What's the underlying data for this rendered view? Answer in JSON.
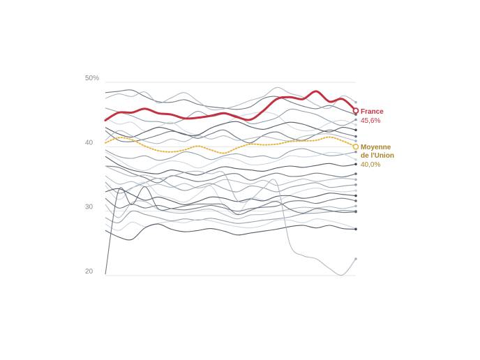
{
  "chart_data": {
    "type": "line",
    "ylim": [
      20,
      50
    ],
    "y_ticks": [
      "20",
      "30",
      "40",
      "50%"
    ],
    "grid": true,
    "highlight": {
      "name": "France",
      "value_label": "45,6%",
      "color": "#c4313e",
      "values": [
        44.1,
        45.3,
        45.3,
        45.9,
        45.2,
        45.0,
        44.4,
        44.5,
        44.8,
        45.2,
        44.6,
        44.2,
        45.6,
        47.4,
        47.7,
        47.4,
        48.6,
        47.0,
        47.4,
        45.6
      ]
    },
    "average": {
      "name": "Moyenne de l'Union",
      "name_lines": [
        "Moyenne",
        "de l'Union"
      ],
      "value_label": "40,0%",
      "color": "#e8b341",
      "values": [
        40.6,
        41.4,
        41.1,
        40.1,
        39.4,
        39.2,
        39.5,
        40.1,
        39.5,
        39.0,
        39.8,
        40.4,
        40.3,
        40.4,
        40.8,
        40.9,
        41.0,
        41.5,
        40.9,
        40.0
      ]
    },
    "others_colors": [
      "#5f6a75",
      "#a8b3bd",
      "#8696a4",
      "#c9d2da",
      "#3f4954"
    ],
    "series": [
      {
        "values": [
          48.4,
          48.6,
          48.8,
          47.8,
          47.0,
          46.9,
          47.3,
          46.6,
          46.2,
          46.0,
          45.8,
          46.2,
          47.5,
          47.8,
          47.0,
          46.3,
          45.9,
          46.4,
          45.7,
          45.0
        ]
      },
      {
        "values": [
          47.5,
          48.2,
          47.8,
          48.5,
          46.8,
          47.6,
          48.4,
          47.1,
          45.8,
          45.9,
          46.4,
          47.2,
          47.8,
          49.2,
          48.3,
          47.7,
          46.5,
          46.0,
          47.9,
          46.9
        ]
      },
      {
        "values": [
          46.0,
          45.4,
          44.8,
          44.0,
          43.9,
          43.6,
          44.3,
          45.5,
          44.7,
          45.1,
          44.8,
          43.6,
          43.9,
          44.5,
          45.8,
          45.5,
          45.0,
          44.0,
          43.3,
          44.2
        ]
      },
      {
        "values": [
          44.5,
          43.5,
          43.8,
          42.4,
          43.1,
          43.8,
          42.5,
          41.9,
          42.9,
          43.5,
          44.6,
          45.1,
          45.4,
          44.9,
          43.2,
          42.5,
          42.7,
          43.7,
          44.1,
          43.4
        ]
      },
      {
        "values": [
          43.0,
          42.0,
          41.5,
          42.3,
          43.0,
          42.6,
          41.9,
          41.8,
          42.9,
          43.6,
          43.9,
          43.1,
          42.7,
          43.3,
          43.8,
          43.5,
          42.8,
          42.3,
          43.0,
          42.6
        ]
      },
      {
        "values": [
          42.5,
          41.0,
          40.8,
          41.2,
          41.8,
          42.4,
          42.0,
          41.3,
          42.0,
          42.6,
          41.4,
          40.6,
          41.8,
          42.3,
          41.4,
          41.0,
          41.9,
          42.6,
          42.1,
          41.6
        ]
      },
      {
        "values": [
          41.0,
          42.5,
          41.7,
          40.9,
          40.5,
          41.2,
          40.8,
          41.7,
          41.2,
          41.7,
          41.0,
          41.3,
          41.6,
          41.2,
          40.9,
          41.6,
          41.9,
          42.0,
          41.5,
          40.9
        ]
      },
      {
        "values": [
          39.5,
          38.5,
          38.2,
          38.6,
          37.9,
          38.3,
          39.2,
          38.8,
          38.0,
          38.6,
          38.9,
          38.4,
          38.6,
          38.2,
          39.3,
          39.7,
          39.1,
          38.6,
          38.8,
          39.2
        ]
      },
      {
        "values": [
          39.2,
          38.0,
          36.8,
          36.3,
          37.2,
          37.8,
          37.5,
          36.7,
          37.4,
          38.3,
          38.0,
          37.2,
          37.3,
          37.8,
          38.6,
          38.4,
          38.6,
          39.1,
          38.9,
          38.0
        ]
      },
      {
        "values": [
          38.5,
          37.2,
          36.4,
          36.0,
          35.8,
          36.4,
          36.0,
          35.6,
          36.3,
          36.9,
          36.6,
          36.4,
          36.2,
          36.7,
          37.0,
          36.8,
          37.1,
          37.4,
          37.0,
          37.3
        ]
      },
      {
        "values": [
          37.0,
          36.8,
          35.9,
          35.2,
          34.4,
          35.5,
          35.1,
          34.6,
          34.9,
          35.6,
          35.8,
          34.8,
          35.4,
          35.9,
          35.4,
          35.5,
          35.9,
          35.6,
          35.3,
          35.8
        ]
      },
      {
        "values": [
          35.5,
          34.2,
          34.6,
          33.8,
          34.2,
          33.7,
          34.3,
          33.6,
          34.1,
          34.9,
          34.6,
          34.2,
          34.8,
          34.0,
          34.5,
          35.0,
          34.6,
          34.9,
          35.1,
          34.9
        ]
      },
      {
        "values": [
          34.5,
          32.8,
          33.6,
          34.4,
          35.1,
          34.0,
          33.2,
          33.8,
          34.3,
          33.5,
          33.0,
          33.9,
          33.6,
          33.0,
          33.7,
          34.1,
          34.4,
          33.7,
          33.9,
          34.1
        ]
      },
      {
        "values": [
          34.0,
          31.8,
          33.5,
          34.5,
          32.6,
          32.0,
          31.4,
          32.6,
          33.9,
          30.8,
          29.5,
          32.0,
          31.7,
          31.6,
          32.5,
          33.2,
          33.6,
          33.2,
          33.0,
          33.2
        ]
      },
      {
        "values": [
          33.0,
          33.5,
          32.6,
          31.7,
          32.2,
          31.6,
          31.0,
          31.5,
          32.2,
          32.0,
          31.5,
          31.9,
          31.6,
          32.3,
          32.4,
          32.0,
          32.3,
          32.8,
          32.6,
          32.4
        ]
      },
      {
        "values": [
          32.0,
          30.5,
          31.1,
          30.5,
          30.9,
          30.4,
          30.2,
          30.5,
          30.9,
          30.5,
          30.0,
          30.4,
          30.6,
          30.8,
          31.5,
          31.6,
          31.2,
          31.7,
          32.0,
          31.6
        ]
      },
      {
        "values": [
          31.0,
          29.0,
          31.3,
          31.5,
          30.3,
          29.8,
          29.7,
          30.1,
          30.3,
          29.5,
          28.8,
          29.4,
          29.5,
          29.9,
          30.3,
          30.6,
          30.5,
          30.7,
          30.4,
          30.8
        ]
      },
      {
        "values": [
          29.0,
          28.2,
          30.0,
          29.5,
          29.0,
          28.5,
          28.8,
          28.6,
          28.9,
          28.5,
          28.1,
          28.3,
          28.6,
          28.8,
          29.1,
          29.6,
          29.7,
          29.9,
          30.1,
          30.0
        ]
      },
      {
        "values": [
          28.0,
          27.0,
          28.3,
          27.6,
          28.1,
          28.4,
          28.2,
          28.7,
          28.5,
          28.0,
          27.6,
          27.4,
          27.8,
          28.6,
          28.6,
          28.2,
          28.8,
          28.5,
          28.0,
          27.3
        ]
      },
      {
        "values": [
          27.0,
          26.0,
          25.6,
          27.4,
          28.0,
          27.2,
          26.8,
          27.0,
          27.3,
          26.9,
          26.3,
          26.6,
          26.9,
          27.2,
          27.6,
          27.8,
          27.4,
          27.8,
          27.3,
          27.2
        ]
      },
      {
        "values": [
          20.2,
          33.2,
          31.0,
          33.8,
          30.4,
          30.4,
          30.8,
          31.1,
          31.1,
          31.0,
          29.5,
          30.1,
          30.9,
          31.5,
          30.3,
          29.7,
          30.4,
          30.1,
          29.8,
          29.9
        ]
      },
      {
        "values": [
          37.0,
          36.1,
          35.4,
          35.6,
          35.1,
          35.4,
          36.0,
          36.2,
          35.8,
          35.9,
          31.7,
          31.8,
          33.6,
          34.4,
          24.9,
          23.1,
          22.6,
          21.1,
          20.1,
          22.6
        ]
      }
    ]
  }
}
